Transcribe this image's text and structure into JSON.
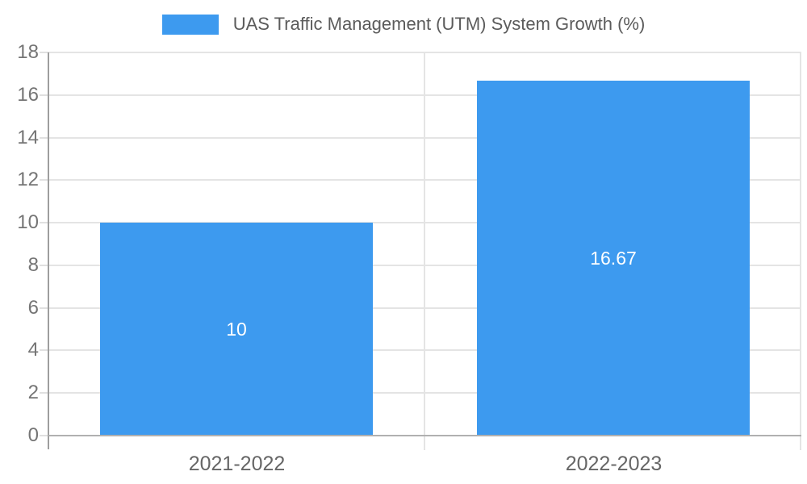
{
  "chart_data": {
    "type": "bar",
    "title": "",
    "series_name": "UAS Traffic Management (UTM) System Growth (%)",
    "categories": [
      "2021-2022",
      "2022-2023"
    ],
    "values": [
      10,
      16.67
    ],
    "value_labels": [
      "10",
      "16.67"
    ],
    "ylim": [
      0,
      18
    ],
    "yticks": [
      0,
      2,
      4,
      6,
      8,
      10,
      12,
      14,
      16,
      18
    ],
    "xlabel": "",
    "ylabel": "",
    "grid": true,
    "legend_position": "top",
    "bar_color": "#3D9AEF",
    "value_label_color": "#FFFFFF",
    "axis_text_color": "#757575",
    "gridline_color": "#E4E4E4",
    "axis_line_color": "#9E9E9E",
    "baseline_color": "#B0B0B0"
  }
}
